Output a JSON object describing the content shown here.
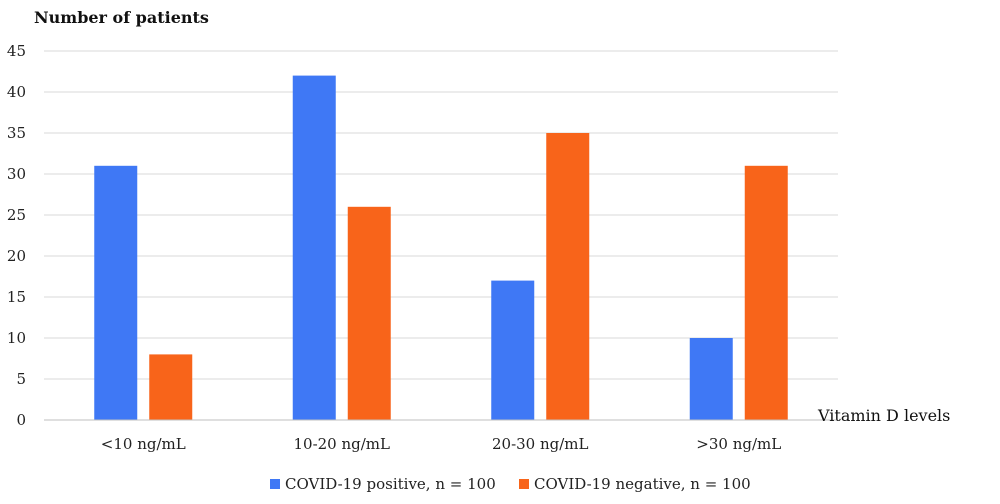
{
  "chart_data": {
    "type": "bar",
    "ylabel": "Number of patients",
    "xlabel": "Vitamin D levels",
    "categories": [
      "<10 ng/mL",
      "10-20 ng/mL",
      "20-30 ng/mL",
      ">30 ng/mL"
    ],
    "series": [
      {
        "name": "COVID-19 positive, n = 100",
        "color": "#3f78f5",
        "values": [
          31,
          42,
          17,
          10
        ]
      },
      {
        "name": "COVID-19 negative, n = 100",
        "color": "#f8641a",
        "values": [
          8,
          26,
          35,
          31
        ]
      }
    ],
    "ylim": [
      0,
      45
    ],
    "yticks": [
      0,
      5,
      10,
      15,
      20,
      25,
      30,
      35,
      40,
      45
    ],
    "grid": true,
    "legend_position": "bottom"
  }
}
